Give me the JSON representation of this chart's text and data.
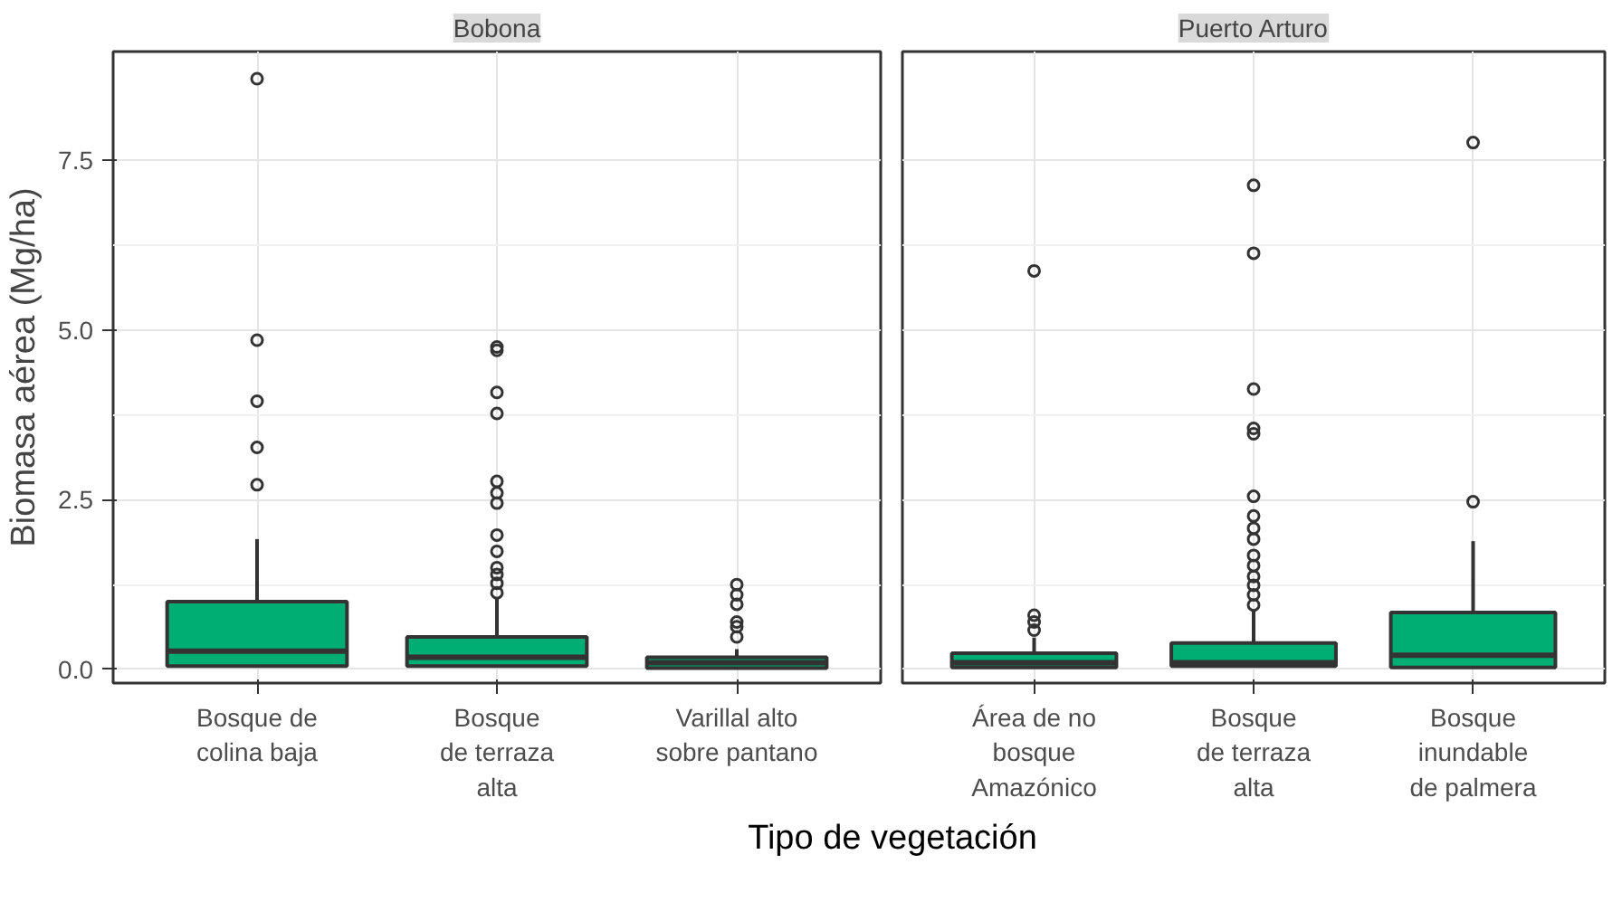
{
  "chart_data": [
    {
      "type": "box",
      "title": "Bobona",
      "ylabel": "Biomasa aérea (Mg/ha)",
      "xlabel": "Tipo de vegetación",
      "categories": [
        "Bosque de\ncolina baja",
        "Bosque\nde terraza\nalta",
        "Varillal alto\nsobre pantano"
      ],
      "color": "#00ad73",
      "ylim": [
        -0.2,
        9.1
      ],
      "yticks": [
        {
          "value": 0,
          "label": "0.0"
        },
        {
          "value": 2.5,
          "label": "2.5"
        },
        {
          "value": 5,
          "label": "5.0"
        },
        {
          "value": 7.5,
          "label": "7.5"
        }
      ],
      "grid": true,
      "boxes": [
        {
          "low": 0.05,
          "q1": 0.05,
          "median": 0.27,
          "q3": 1.0,
          "high": 1.92,
          "outliers": [
            8.7,
            4.85,
            3.95,
            3.27,
            2.72
          ]
        },
        {
          "low": 0.05,
          "q1": 0.05,
          "median": 0.18,
          "q3": 0.48,
          "high": 1.05,
          "outliers": [
            4.75,
            4.7,
            4.08,
            3.77,
            2.77,
            2.6,
            2.45,
            1.98,
            1.74,
            1.5,
            1.4,
            1.27,
            1.13
          ]
        },
        {
          "low": 0.02,
          "q1": 0.02,
          "median": 0.1,
          "q3": 0.18,
          "high": 0.3,
          "outliers": [
            1.25,
            1.1,
            0.96,
            0.7,
            0.63,
            0.48
          ]
        }
      ]
    },
    {
      "type": "box",
      "title": "Puerto Arturo",
      "categories": [
        "Área de no\nbosque\nAmazónico",
        "Bosque\nde terraza\nalta",
        "Bosque\ninundable\nde palmera"
      ],
      "color": "#00ad73",
      "ylim": [
        -0.2,
        9.1
      ],
      "yticks": [
        0,
        2.5,
        5,
        7.5
      ],
      "tick_labels": "x",
      "grid": true,
      "boxes": [
        {
          "low": 0.03,
          "q1": 0.03,
          "median": 0.1,
          "q3": 0.24,
          "high": 0.47,
          "outliers": [
            5.87,
            0.8,
            0.7,
            0.58
          ]
        },
        {
          "low": 0.05,
          "q1": 0.05,
          "median": 0.1,
          "q3": 0.39,
          "high": 0.87,
          "outliers": [
            7.13,
            6.13,
            4.13,
            3.55,
            3.47,
            2.55,
            2.26,
            2.08,
            1.92,
            1.68,
            1.53,
            1.37,
            1.24,
            1.1,
            0.95
          ]
        },
        {
          "low": 0.03,
          "q1": 0.03,
          "median": 0.21,
          "q3": 0.84,
          "high": 1.89,
          "outliers": [
            7.76,
            2.47
          ]
        }
      ]
    }
  ]
}
